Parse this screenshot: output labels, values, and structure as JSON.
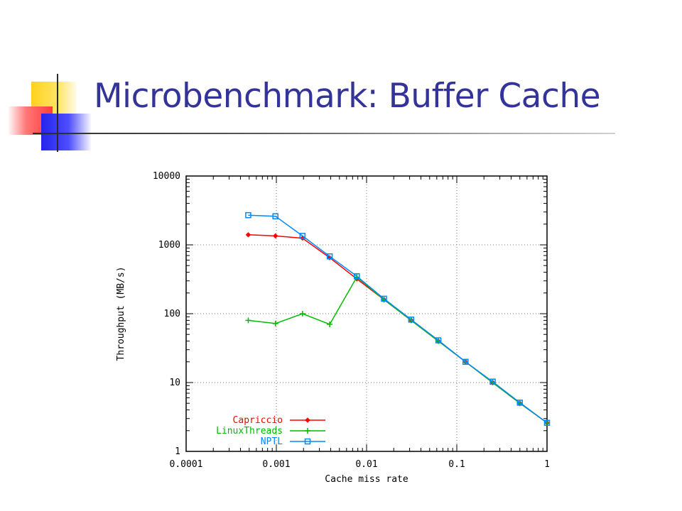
{
  "slide": {
    "title": "Microbenchmark: Buffer Cache"
  },
  "chart_data": {
    "type": "line",
    "title": "",
    "xlabel": "Cache miss rate",
    "ylabel": "Throughput (MB/s)",
    "x_scale": "log",
    "y_scale": "log",
    "xlim": [
      0.0001,
      1
    ],
    "ylim": [
      1,
      10000
    ],
    "x_ticks": [
      "0.0001",
      "0.001",
      "0.01",
      "0.1",
      "1"
    ],
    "y_ticks": [
      "1",
      "10",
      "100",
      "1000",
      "10000"
    ],
    "grid": true,
    "legend": "bottom-left",
    "series": [
      {
        "name": "Capriccio",
        "color": "#ff0000",
        "marker": "diamond",
        "x": [
          0.000488,
          0.000977,
          0.00195,
          0.0039,
          0.0078,
          0.0156,
          0.03125,
          0.0625,
          0.125,
          0.25,
          0.5,
          1
        ],
        "y": [
          1400,
          1350,
          1250,
          650,
          320,
          160,
          80,
          40,
          20,
          10,
          5,
          2.6
        ]
      },
      {
        "name": "LinuxThreads",
        "color": "#00bb00",
        "marker": "plus",
        "x": [
          0.000488,
          0.000977,
          0.00195,
          0.0039,
          0.0078,
          0.0156,
          0.03125,
          0.0625,
          0.125,
          0.25,
          0.5,
          1
        ],
        "y": [
          80,
          72,
          100,
          70,
          340,
          160,
          80,
          40,
          20,
          10,
          5,
          2.6
        ]
      },
      {
        "name": "NPTL",
        "color": "#0088ff",
        "marker": "square",
        "x": [
          0.000488,
          0.000977,
          0.00195,
          0.0039,
          0.0078,
          0.0156,
          0.03125,
          0.0625,
          0.125,
          0.25,
          0.5,
          1
        ],
        "y": [
          2700,
          2600,
          1350,
          680,
          350,
          165,
          82,
          41,
          20,
          10.3,
          5.1,
          2.6
        ]
      }
    ]
  }
}
